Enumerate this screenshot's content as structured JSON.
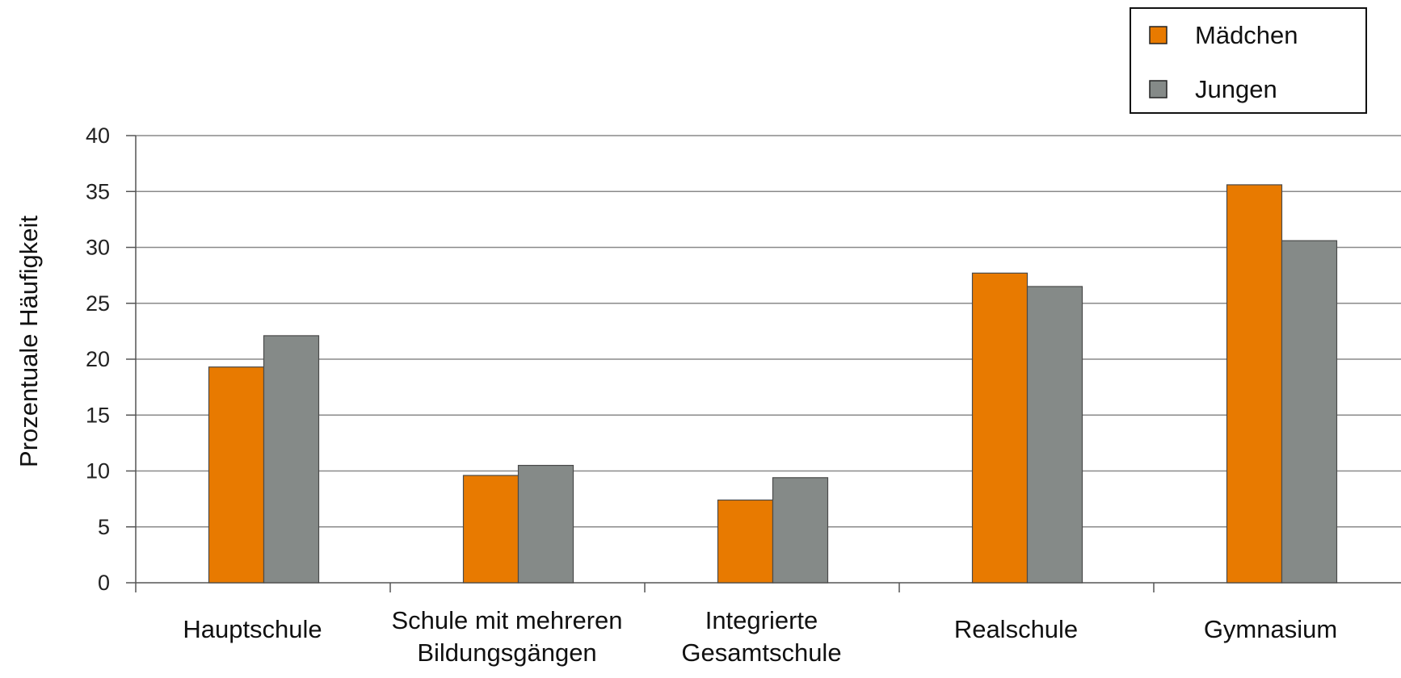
{
  "chart_data": {
    "type": "bar",
    "title": "",
    "xlabel": "",
    "ylabel": "Prozentuale Häufigkeit",
    "ylim": [
      0,
      40
    ],
    "yticks": [
      0,
      5,
      10,
      15,
      20,
      25,
      30,
      35,
      40
    ],
    "grid": "horizontal",
    "legend_position": "top-right",
    "categories": [
      [
        "Hauptschule"
      ],
      [
        "Schule mit mehreren",
        "Bildungsgängen"
      ],
      [
        "Integrierte",
        "Gesamtschule"
      ],
      [
        "Realschule"
      ],
      [
        "Gymnasium"
      ]
    ],
    "series": [
      {
        "name": "Mädchen",
        "color": "#e87a00",
        "values": [
          19.3,
          9.6,
          7.4,
          27.7,
          35.6
        ]
      },
      {
        "name": "Jungen",
        "color": "#858a88",
        "values": [
          22.1,
          10.5,
          9.4,
          26.5,
          30.6
        ]
      }
    ]
  }
}
